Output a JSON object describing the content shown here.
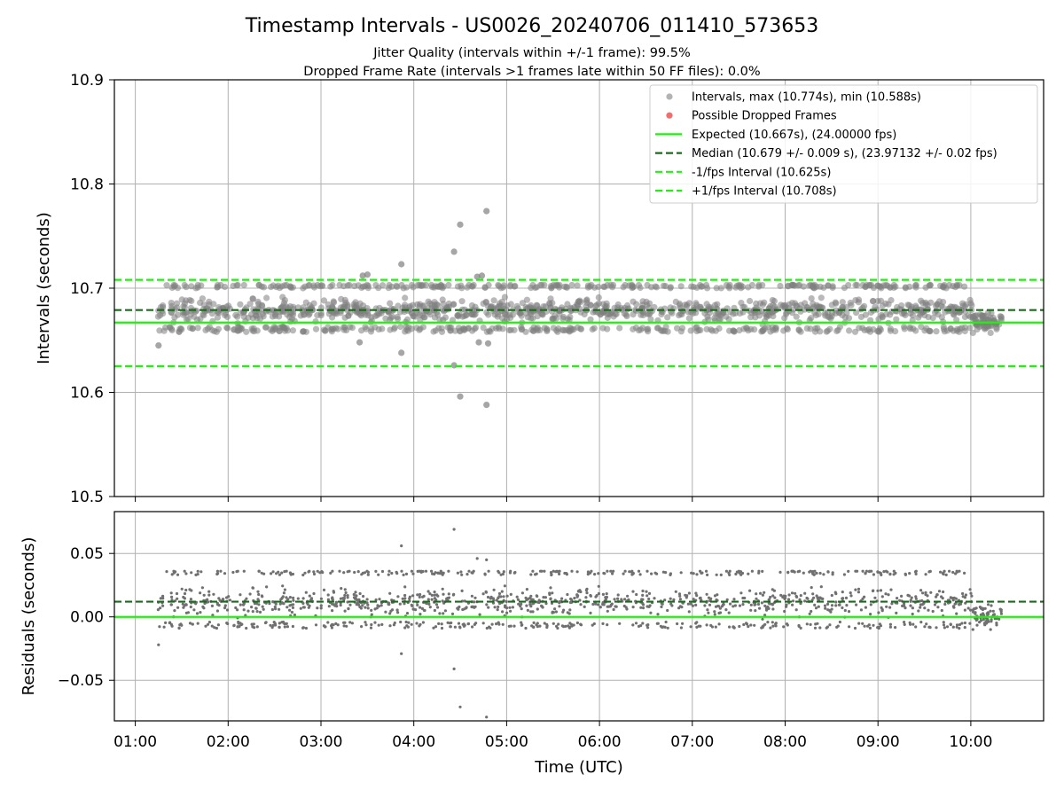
{
  "chart_data": [
    {
      "type": "scatter",
      "title": "Timestamp Intervals - US0026_20240706_011410_573653",
      "subtitle_1": "Jitter Quality (intervals within +/-1 frame): 99.5%",
      "subtitle_2": "Dropped Frame Rate (intervals >1 frames late within 50 FF files): 0.0%",
      "xlabel": "",
      "ylabel": "Intervals (seconds)",
      "ylim": [
        10.5,
        10.9
      ],
      "yticks": [
        "10.9",
        "10.8",
        "10.7",
        "10.6",
        "10.5"
      ],
      "grid": true,
      "legend_position": "top-right",
      "legend": [
        "Intervals, max (10.774s), min (10.588s)",
        "Possible Dropped Frames",
        "Expected (10.667s), (24.00000 fps)",
        "Median (10.679 +/- 0.009 s), (23.97132 +/- 0.02 fps)",
        "-1/fps Interval (10.625s)",
        "+1/fps Interval (10.708s)"
      ],
      "reference_lines": {
        "expected": 10.667,
        "median": 10.679,
        "minus_1_fps": 10.625,
        "plus_1_fps": 10.708
      },
      "series": [
        {
          "name": "Intervals, max (10.774s), min (10.588s)",
          "color": "#808080",
          "x_range": [
            "01:14",
            "10:20"
          ],
          "y_core_range": [
            10.657,
            10.703
          ],
          "y_max": 10.774,
          "y_min": 10.588
        },
        {
          "name": "Possible Dropped Frames",
          "color": "#ee5555",
          "values": []
        }
      ],
      "outliers": [
        {
          "x": "01:15",
          "y": 10.645
        },
        {
          "x": "03:25",
          "y": 10.648
        },
        {
          "x": "03:27",
          "y": 10.712
        },
        {
          "x": "03:30",
          "y": 10.713
        },
        {
          "x": "03:52",
          "y": 10.723
        },
        {
          "x": "03:52",
          "y": 10.638
        },
        {
          "x": "04:26",
          "y": 10.735
        },
        {
          "x": "04:26",
          "y": 10.626
        },
        {
          "x": "04:30",
          "y": 10.761
        },
        {
          "x": "04:30",
          "y": 10.596
        },
        {
          "x": "04:41",
          "y": 10.711
        },
        {
          "x": "04:42",
          "y": 10.648
        },
        {
          "x": "04:44",
          "y": 10.712
        },
        {
          "x": "04:47",
          "y": 10.774
        },
        {
          "x": "04:47",
          "y": 10.588
        },
        {
          "x": "04:48",
          "y": 10.647
        }
      ]
    },
    {
      "type": "scatter",
      "xlabel": "Time (UTC)",
      "ylabel": "Residuals (seconds)",
      "ylim": [
        -0.082,
        0.083
      ],
      "yticks": [
        "0.05",
        "0.00",
        "−0.05"
      ],
      "xticks": [
        "01:00",
        "02:00",
        "03:00",
        "04:00",
        "05:00",
        "06:00",
        "07:00",
        "08:00",
        "09:00",
        "10:00"
      ],
      "grid": true,
      "reference_lines": {
        "zero": 0.0,
        "median_offset": 0.012
      },
      "series": [
        {
          "name": "",
          "color": "#707070",
          "x_range": [
            "01:14",
            "10:20"
          ],
          "y_core_range": [
            -0.01,
            0.036
          ]
        }
      ],
      "outliers": [
        {
          "x": "01:15",
          "y": -0.022
        },
        {
          "x": "03:52",
          "y": 0.056
        },
        {
          "x": "03:52",
          "y": -0.029
        },
        {
          "x": "04:26",
          "y": 0.069
        },
        {
          "x": "04:26",
          "y": -0.041
        },
        {
          "x": "04:30",
          "y": -0.071
        },
        {
          "x": "04:47",
          "y": -0.079
        },
        {
          "x": "04:47",
          "y": 0.045
        },
        {
          "x": "04:41",
          "y": 0.046
        }
      ]
    }
  ],
  "colors": {
    "points": "#808080",
    "residual_points": "#707070",
    "dropped": "#ee5555",
    "expected": "#22ee11",
    "median": "#1a6b1a",
    "fps_band": "#22ee11",
    "grid": "#b0b0b0"
  }
}
